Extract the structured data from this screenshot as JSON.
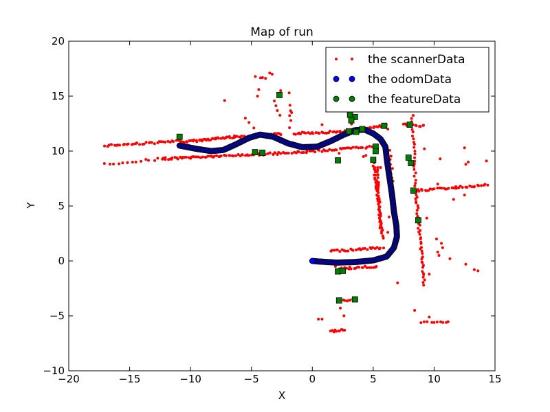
{
  "chart_data": {
    "type": "scatter",
    "title": "Map of run",
    "xlabel": "X",
    "ylabel": "Y",
    "xlim": [
      -20,
      15
    ],
    "ylim": [
      -10,
      20
    ],
    "xticks": [
      -20,
      -15,
      -10,
      -5,
      0,
      5,
      10,
      15
    ],
    "yticks": [
      -10,
      -5,
      0,
      5,
      10,
      15,
      20
    ],
    "xtick_labels": [
      "−20",
      "−15",
      "−10",
      "−5",
      "0",
      "5",
      "10",
      "15"
    ],
    "ytick_labels": [
      "−10",
      "−5",
      "0",
      "5",
      "10",
      "15",
      "20"
    ],
    "grid": false,
    "legend": "top-right",
    "series": [
      {
        "name": "the scannerData",
        "color": "#ff0000",
        "marker": "small-dot",
        "segments": [
          {
            "from": [
              -10.8,
              10.8
            ],
            "to": [
              -6.4,
              11.3
            ],
            "count": 40
          },
          {
            "from": [
              -6.4,
              11.3
            ],
            "to": [
              -2.5,
              11.55
            ],
            "count": 30
          },
          {
            "from": [
              -1.5,
              11.6
            ],
            "to": [
              2.8,
              11.8
            ],
            "count": 30
          },
          {
            "from": [
              3.5,
              11.9
            ],
            "to": [
              6.0,
              12.3
            ],
            "count": 18
          },
          {
            "from": [
              7.5,
              12.4
            ],
            "to": [
              9.2,
              12.3
            ],
            "count": 12
          },
          {
            "from": [
              -17.0,
              10.5
            ],
            "to": [
              -10.8,
              10.9
            ],
            "count": 36
          },
          {
            "from": [
              -12.3,
              9.3
            ],
            "to": [
              -2.4,
              9.8
            ],
            "count": 70
          },
          {
            "from": [
              -2.2,
              9.8
            ],
            "to": [
              5.0,
              10.4
            ],
            "count": 45
          },
          {
            "from": [
              -17.0,
              8.8
            ],
            "to": [
              -12.3,
              9.3
            ],
            "count": 14
          },
          {
            "from": [
              5.0,
              9.2
            ],
            "to": [
              5.8,
              2.0
            ],
            "count": 45
          },
          {
            "from": [
              5.3,
              8.5
            ],
            "to": [
              5.6,
              3.0
            ],
            "count": 25
          },
          {
            "from": [
              1.5,
              0.9
            ],
            "to": [
              5.8,
              1.2
            ],
            "count": 28
          },
          {
            "from": [
              2.3,
              -0.7
            ],
            "to": [
              5.3,
              -0.5
            ],
            "count": 20
          },
          {
            "from": [
              8.6,
              6.4
            ],
            "to": [
              14.2,
              6.9
            ],
            "count": 35
          },
          {
            "from": [
              8.5,
              6.3
            ],
            "to": [
              9.2,
              -2.2
            ],
            "count": 40
          },
          {
            "from": [
              8.2,
              13.2
            ],
            "to": [
              8.5,
              6.2
            ],
            "count": 25
          },
          {
            "from": [
              1.5,
              -6.4
            ],
            "to": [
              2.6,
              -6.3
            ],
            "count": 10
          },
          {
            "from": [
              2.5,
              -3.6
            ],
            "to": [
              3.6,
              -3.5
            ],
            "count": 8
          },
          {
            "from": [
              9.0,
              -5.6
            ],
            "to": [
              11.2,
              -5.5
            ],
            "count": 10
          },
          {
            "from": [
              6.4,
              10.0
            ],
            "to": [
              6.6,
              7.2
            ],
            "count": 8
          },
          {
            "from": [
              3.0,
              13.4
            ],
            "to": [
              3.3,
              12.4
            ],
            "count": 6
          },
          {
            "from": [
              -4.6,
              16.7
            ],
            "to": [
              -3.8,
              16.6
            ],
            "count": 4
          },
          {
            "from": [
              -1.8,
              14.2
            ],
            "to": [
              -1.8,
              12.2
            ],
            "count": 5
          },
          {
            "from": [
              -3.2,
              14.5
            ],
            "to": [
              -2.6,
              13.2
            ],
            "count": 4
          }
        ],
        "points": [
          [
            -3.5,
            17.1
          ],
          [
            -3.3,
            17.0
          ],
          [
            -4.4,
            15.6
          ],
          [
            -4.5,
            15.0
          ],
          [
            -5.5,
            13.0
          ],
          [
            -5.2,
            12.6
          ],
          [
            -7.2,
            14.6
          ],
          [
            -4.8,
            12.1
          ],
          [
            -2.6,
            15.5
          ],
          [
            -1.9,
            15.3
          ],
          [
            -1.7,
            13.5
          ],
          [
            0.8,
            12.4
          ],
          [
            2.1,
            14.5
          ],
          [
            2.2,
            9.8
          ],
          [
            4.2,
            9.5
          ],
          [
            4.4,
            9.6
          ],
          [
            5.6,
            8.5
          ],
          [
            6.2,
            12.0
          ],
          [
            7.9,
            15.5
          ],
          [
            9.2,
            10.2
          ],
          [
            10.5,
            9.3
          ],
          [
            12.6,
            8.8
          ],
          [
            12.8,
            9.0
          ],
          [
            14.3,
            9.1
          ],
          [
            12.5,
            10.3
          ],
          [
            10.3,
            7.0
          ],
          [
            11.6,
            5.6
          ],
          [
            12.5,
            6.0
          ],
          [
            14.4,
            6.9
          ],
          [
            9.4,
            3.9
          ],
          [
            10.2,
            2.0
          ],
          [
            10.7,
            1.2
          ],
          [
            10.6,
            1.6
          ],
          [
            11.3,
            0.2
          ],
          [
            12.6,
            -0.3
          ],
          [
            13.3,
            -0.8
          ],
          [
            13.6,
            -0.9
          ],
          [
            10.3,
            0.8
          ],
          [
            10.4,
            0.5
          ],
          [
            9.6,
            -1.2
          ],
          [
            8.4,
            -4.5
          ],
          [
            9.6,
            -5.1
          ],
          [
            7.0,
            -2.0
          ],
          [
            2.3,
            -4.3
          ],
          [
            2.6,
            -5.0
          ],
          [
            0.5,
            -5.3
          ],
          [
            0.8,
            -5.3
          ],
          [
            6.3,
            4.0
          ],
          [
            6.2,
            2.6
          ],
          [
            1.9,
            -0.5
          ],
          [
            2.3,
            14.8
          ]
        ]
      },
      {
        "name": "the odomData",
        "color": "#0000ff",
        "marker": "circle",
        "path": [
          [
            -10.9,
            10.5
          ],
          [
            -9.5,
            10.2
          ],
          [
            -8.3,
            10.0
          ],
          [
            -7.3,
            10.1
          ],
          [
            -6.3,
            10.6
          ],
          [
            -5.2,
            11.2
          ],
          [
            -4.3,
            11.5
          ],
          [
            -3.2,
            11.3
          ],
          [
            -2.0,
            10.7
          ],
          [
            -0.8,
            10.35
          ],
          [
            0.4,
            10.4
          ],
          [
            1.5,
            10.9
          ],
          [
            2.6,
            11.5
          ],
          [
            3.5,
            11.9
          ],
          [
            4.3,
            11.95
          ],
          [
            5.0,
            11.6
          ],
          [
            5.6,
            11.1
          ],
          [
            6.0,
            10.4
          ],
          [
            6.15,
            9.0
          ],
          [
            6.35,
            7.5
          ],
          [
            6.55,
            6.0
          ],
          [
            6.7,
            4.5
          ],
          [
            6.9,
            3.2
          ],
          [
            6.95,
            2.2
          ],
          [
            6.7,
            1.2
          ],
          [
            6.1,
            0.4
          ],
          [
            5.0,
            0.05
          ],
          [
            3.5,
            -0.1
          ],
          [
            2.0,
            -0.15
          ],
          [
            0.5,
            -0.05
          ],
          [
            0.0,
            0.0
          ]
        ],
        "count": 340
      },
      {
        "name": "the featureData",
        "color": "#008000",
        "marker": "square",
        "points": [
          [
            -10.9,
            11.3
          ],
          [
            -4.7,
            9.9
          ],
          [
            -4.1,
            9.85
          ],
          [
            -2.7,
            15.1
          ],
          [
            3.1,
            13.3
          ],
          [
            3.5,
            13.1
          ],
          [
            3.2,
            12.8
          ],
          [
            3.0,
            11.8
          ],
          [
            3.6,
            11.75
          ],
          [
            4.1,
            12.0
          ],
          [
            5.9,
            12.3
          ],
          [
            5.2,
            10.4
          ],
          [
            5.2,
            10.0
          ],
          [
            5.0,
            9.2
          ],
          [
            2.1,
            9.15
          ],
          [
            8.0,
            12.4
          ],
          [
            7.9,
            9.4
          ],
          [
            8.1,
            8.9
          ],
          [
            8.3,
            6.4
          ],
          [
            8.7,
            3.7
          ],
          [
            2.1,
            -0.95
          ],
          [
            2.5,
            -0.9
          ],
          [
            2.2,
            -3.6
          ],
          [
            3.5,
            -3.5
          ]
        ]
      }
    ]
  }
}
